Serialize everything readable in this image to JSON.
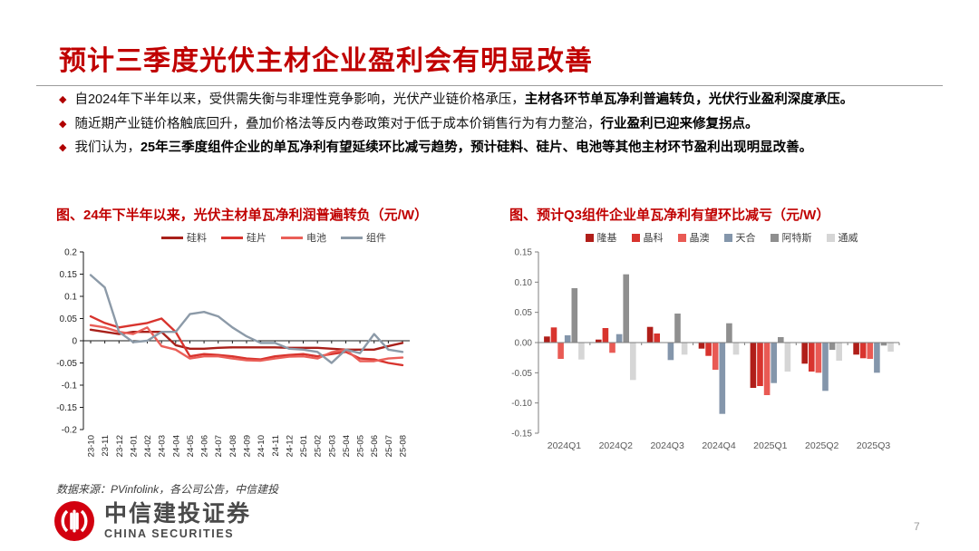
{
  "page": {
    "number": "7"
  },
  "header": {
    "title": "预计三季度光伏主材企业盈利会有明显改善",
    "accent_color": "#c00000"
  },
  "bullets": [
    {
      "text": "自2024年下半年以来，受供需失衡与非理性竞争影响，光伏产业链价格承压，",
      "bold": "主材各环节单瓦净利普遍转负，光伏行业盈利深度承压。"
    },
    {
      "text": "随近期产业链价格触底回升，叠加价格法等反内卷政策对于低于成本价销售行为有力整治，",
      "bold": "行业盈利已迎来修复拐点。"
    },
    {
      "text": "我们认为，",
      "bold": "25年三季度组件企业的单瓦净利有望延续环比减亏趋势，预计硅料、硅片、电池等其他主材环节盈利出现明显改善。"
    }
  ],
  "chart_data": [
    {
      "type": "line",
      "title": "图、24年下半年以来，光伏主材单瓦净利润普遍转负（元/W）",
      "xlabel": "",
      "ylabel": "",
      "x": [
        "23-10",
        "23-11",
        "23-12",
        "24-01",
        "24-02",
        "24-03",
        "24-04",
        "24-05",
        "24-06",
        "24-07",
        "24-08",
        "24-09",
        "24-10",
        "24-11",
        "24-12",
        "25-01",
        "25-02",
        "25-03",
        "25-04",
        "25-05",
        "25-06",
        "25-07",
        "25-08"
      ],
      "ylim": [
        -0.2,
        0.2
      ],
      "yticks": [
        "0.2",
        "0.15",
        "0.1",
        "0.05",
        "0",
        "-0.05",
        "-0.1",
        "-0.15",
        "-0.2"
      ],
      "grid": false,
      "legend_position": "top",
      "series": [
        {
          "name": "硅料",
          "color": "#a8201a",
          "values": [
            0.025,
            0.02,
            0.015,
            0.02,
            0.02,
            0.02,
            -0.01,
            -0.018,
            -0.018,
            -0.016,
            -0.015,
            -0.015,
            -0.015,
            -0.015,
            -0.016,
            -0.016,
            -0.016,
            -0.018,
            -0.02,
            -0.02,
            -0.02,
            -0.012,
            -0.005
          ]
        },
        {
          "name": "硅片",
          "color": "#d8342e",
          "values": [
            0.055,
            0.04,
            0.03,
            0.035,
            0.04,
            0.05,
            0.02,
            -0.035,
            -0.03,
            -0.032,
            -0.035,
            -0.04,
            -0.042,
            -0.035,
            -0.032,
            -0.03,
            -0.035,
            -0.03,
            -0.025,
            -0.04,
            -0.042,
            -0.05,
            -0.055
          ]
        },
        {
          "name": "电池",
          "color": "#ea5f58",
          "values": [
            0.035,
            0.03,
            0.02,
            0.015,
            0.03,
            -0.012,
            -0.02,
            -0.04,
            -0.035,
            -0.035,
            -0.04,
            -0.044,
            -0.045,
            -0.04,
            -0.036,
            -0.035,
            -0.04,
            -0.026,
            -0.02,
            -0.046,
            -0.046,
            -0.04,
            -0.038
          ]
        },
        {
          "name": "组件",
          "color": "#8c9aa8",
          "values": [
            0.148,
            0.12,
            0.02,
            -0.003,
            0.0,
            0.02,
            0.02,
            0.06,
            0.065,
            0.055,
            0.03,
            0.01,
            -0.005,
            -0.005,
            -0.018,
            -0.02,
            -0.025,
            -0.05,
            -0.02,
            -0.028,
            0.015,
            -0.02,
            -0.025
          ]
        }
      ]
    },
    {
      "type": "bar",
      "title": "图、预计Q3组件企业单瓦净利有望环比减亏（元/W）",
      "xlabel": "",
      "ylabel": "",
      "categories": [
        "2024Q1",
        "2024Q2",
        "2024Q3",
        "2024Q4",
        "2025Q1",
        "2025Q2",
        "2025Q3"
      ],
      "ylim": [
        -0.15,
        0.15
      ],
      "yticks": [
        "0.15",
        "0.10",
        "0.05",
        "0.00",
        "-0.05",
        "-0.10",
        "-0.15"
      ],
      "grid": false,
      "legend_position": "top",
      "series": [
        {
          "name": "隆基",
          "color": "#b01e19",
          "values": [
            0.01,
            0.005,
            0.026,
            -0.01,
            -0.075,
            -0.035,
            -0.02
          ]
        },
        {
          "name": "晶科",
          "color": "#d8342e",
          "values": [
            0.025,
            0.024,
            0.015,
            -0.022,
            -0.072,
            -0.048,
            -0.026
          ]
        },
        {
          "name": "晶澳",
          "color": "#e95a54",
          "values": [
            -0.027,
            -0.017,
            0.0,
            -0.045,
            -0.087,
            -0.05,
            -0.027
          ]
        },
        {
          "name": "天合",
          "color": "#8496ab",
          "values": [
            0.012,
            0.014,
            -0.029,
            -0.118,
            -0.067,
            -0.08,
            -0.05
          ]
        },
        {
          "name": "阿特斯",
          "color": "#8f8f8f",
          "values": [
            0.09,
            0.113,
            0.048,
            0.032,
            0.009,
            -0.012,
            -0.005
          ]
        },
        {
          "name": "通威",
          "color": "#d6d6d6",
          "values": [
            -0.028,
            -0.062,
            -0.02,
            -0.02,
            -0.048,
            -0.03,
            -0.015
          ]
        }
      ]
    }
  ],
  "footer": {
    "source": "数据来源：PVinfolink，各公司公告，中信建投",
    "logo_cn": "中信建投证券",
    "logo_en": "CHINA SECURITIES",
    "logo_red": "#d2000f"
  }
}
